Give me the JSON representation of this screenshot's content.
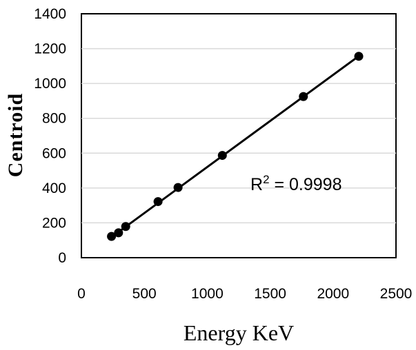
{
  "chart_data": {
    "type": "scatter",
    "xlabel": "Energy KeV",
    "ylabel": "Centroid",
    "xlim": [
      0,
      2500
    ],
    "ylim": [
      0,
      1400
    ],
    "xticks": [
      0,
      500,
      1000,
      1500,
      2000,
      2500
    ],
    "yticks": [
      0,
      200,
      400,
      600,
      800,
      1000,
      1200,
      1400
    ],
    "grid": "horizontal",
    "series": [
      {
        "x": [
          239,
          295,
          352,
          609,
          768,
          1120,
          1764,
          2204
        ],
        "y": [
          122,
          143,
          179,
          322,
          403,
          587,
          925,
          1156
        ],
        "trendline": {
          "type": "linear",
          "x": [
            239,
            2204
          ],
          "y": [
            118,
            1157
          ]
        }
      }
    ],
    "annotation": {
      "prefix": "R",
      "sup": "2",
      "suffix": " = 0.9998"
    },
    "colors": {
      "markers": "#000000",
      "line": "#000000",
      "grid": "#d9d9d9"
    }
  }
}
